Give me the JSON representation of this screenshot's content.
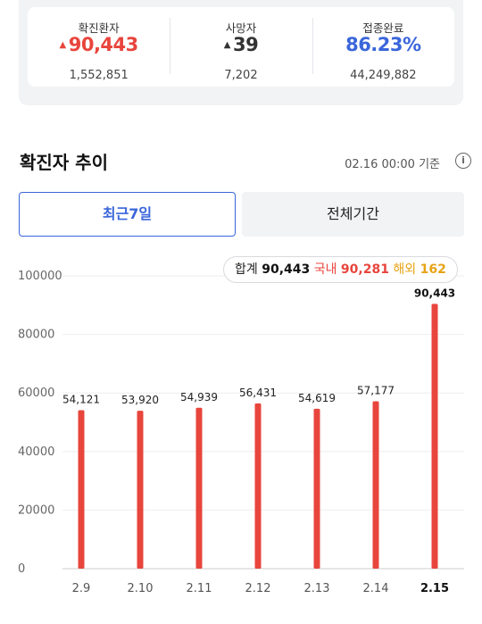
{
  "summary": {
    "confirmed": {
      "label": "확진환자",
      "value": "90,443",
      "total": "1,552,851",
      "arrow": "▲"
    },
    "deaths": {
      "label": "사망자",
      "value": "39",
      "total": "7,202",
      "arrow": "▲"
    },
    "vaccinated": {
      "label": "접종완료",
      "value": "86.23%",
      "total": "44,249,882"
    }
  },
  "section": {
    "title": "확진자 추이",
    "base_time": "02.16 00:00 기준",
    "info_glyph": "i"
  },
  "tabs": [
    {
      "label": "최근7일",
      "active": true
    },
    {
      "label": "전체기간",
      "active": false
    }
  ],
  "tooltip": {
    "total_label": "합계",
    "total_value": "90,443",
    "domestic_label": "국내",
    "domestic_value": "90,281",
    "overseas_label": "해외",
    "overseas_value": "162"
  },
  "colors": {
    "bar": "#e8453c",
    "accent_blue": "#3a66db",
    "grid": "#eeeeee"
  },
  "chart_data": {
    "type": "bar",
    "categories": [
      "2.9",
      "2.10",
      "2.11",
      "2.12",
      "2.13",
      "2.14",
      "2.15"
    ],
    "values": [
      54121,
      53920,
      54939,
      56431,
      54619,
      57177,
      90443
    ],
    "value_labels": [
      "54,121",
      "53,920",
      "54,939",
      "56,431",
      "54,619",
      "57,177",
      "90,443"
    ],
    "ylim": [
      0,
      100000
    ],
    "yticks": [
      0,
      20000,
      40000,
      60000,
      80000,
      100000
    ],
    "highlight_index": 6,
    "grid": true
  }
}
